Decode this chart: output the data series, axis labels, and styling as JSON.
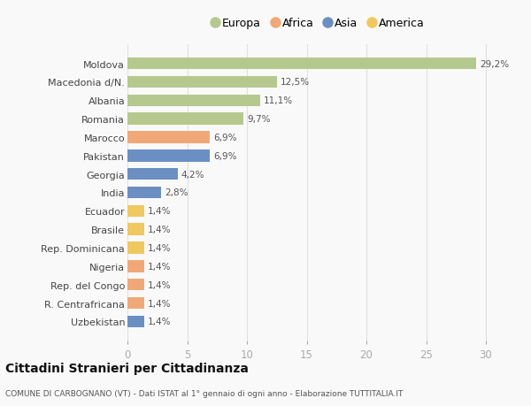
{
  "categories": [
    "Moldova",
    "Macedonia d/N.",
    "Albania",
    "Romania",
    "Marocco",
    "Pakistan",
    "Georgia",
    "India",
    "Ecuador",
    "Brasile",
    "Rep. Dominicana",
    "Nigeria",
    "Rep. del Congo",
    "R. Centrafricana",
    "Uzbekistan"
  ],
  "values": [
    29.2,
    12.5,
    11.1,
    9.7,
    6.9,
    6.9,
    4.2,
    2.8,
    1.4,
    1.4,
    1.4,
    1.4,
    1.4,
    1.4,
    1.4
  ],
  "labels": [
    "29,2%",
    "12,5%",
    "11,1%",
    "9,7%",
    "6,9%",
    "6,9%",
    "4,2%",
    "2,8%",
    "1,4%",
    "1,4%",
    "1,4%",
    "1,4%",
    "1,4%",
    "1,4%",
    "1,4%"
  ],
  "colors": [
    "#b5c98e",
    "#b5c98e",
    "#b5c98e",
    "#b5c98e",
    "#f0a878",
    "#6b8fc2",
    "#6b8fc2",
    "#6b8fc2",
    "#f0c860",
    "#f0c860",
    "#f0c860",
    "#f0a878",
    "#f0a878",
    "#f0a878",
    "#6b8fc2"
  ],
  "legend_labels": [
    "Europa",
    "Africa",
    "Asia",
    "America"
  ],
  "legend_colors": [
    "#b5c98e",
    "#f0a878",
    "#6b8fc2",
    "#f0c860"
  ],
  "xlim": [
    0,
    32
  ],
  "xticks": [
    0,
    5,
    10,
    15,
    20,
    25,
    30
  ],
  "title": "Cittadini Stranieri per Cittadinanza",
  "subtitle": "COMUNE DI CARBOGNANO (VT) - Dati ISTAT al 1° gennaio di ogni anno - Elaborazione TUTTITALIA.IT",
  "background_color": "#f9f9f9",
  "grid_color": "#e0e0e0",
  "bar_height": 0.65
}
